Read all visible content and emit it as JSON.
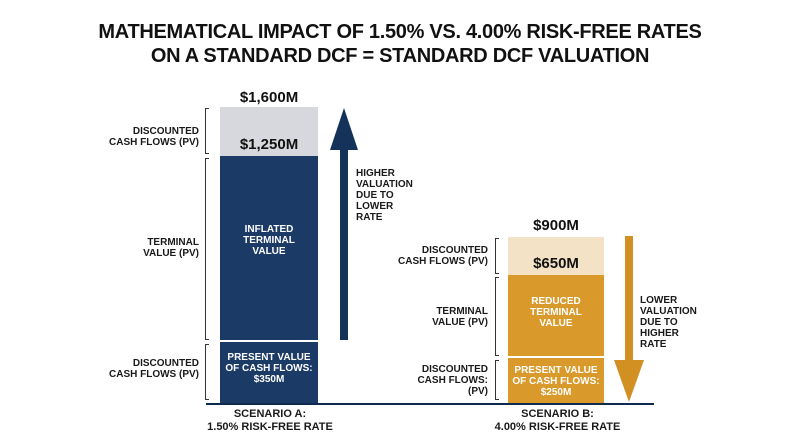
{
  "title_line1": "MATHEMATICAL IMPACT OF 1.50% VS. 4.00% RISK-FREE RATES",
  "title_line2": "ON A STANDARD DCF = STANDARD DCF VALUATION",
  "colors": {
    "navy": "#1b3a66",
    "navy_light": "#d6d8dd",
    "gold": "#d99a2b",
    "gold_light": "#f4e2c7",
    "arrow_navy": "#14325a",
    "arrow_gold": "#d39022"
  },
  "chart_data": {
    "type": "bar",
    "stacked": true,
    "units": "$M",
    "categories": [
      "SCENARIO A: 1.50% RISK-FREE RATE",
      "SCENARIO B: 4.00% RISK-FREE RATE"
    ],
    "scenario_a": {
      "caption_line1": "SCENARIO A:",
      "caption_line2": "1.50% RISK-FREE RATE",
      "total": 1600,
      "total_label": "$1,600M",
      "marker_value": 1250,
      "marker_label": "$1,250M",
      "pv_cash_flows": 350,
      "label_top_line1": "DISCOUNTED",
      "label_top_line2": "CASH FLOWS (PV)",
      "label_mid_line1": "TERMINAL",
      "label_mid_line2": "VALUE (PV)",
      "label_bot_line1": "DISCOUNTED",
      "label_bot_line2": "CASH FLOWS (PV)",
      "seg_mid_line1": "INFLATED",
      "seg_mid_line2": "TERMINAL",
      "seg_mid_line3": "VALUE",
      "seg_bot_line1": "PRESENT VALUE",
      "seg_bot_line2": "OF CASH FLOWS:",
      "seg_bot_line3": "$350M",
      "arrow_note_line1": "HIGHER",
      "arrow_note_line2": "VALUATION",
      "arrow_note_line3": "DUE TO",
      "arrow_note_line4": "LOWER",
      "arrow_note_line5": "RATE"
    },
    "scenario_b": {
      "caption_line1": "SCENARIO B:",
      "caption_line2": "4.00% RISK-FREE RATE",
      "total": 900,
      "total_label": "$900M",
      "marker_value": 650,
      "marker_label": "$650M",
      "pv_cash_flows": 250,
      "label_top_line1": "DISCOUNTED",
      "label_top_line2": "CASH FLOWS (PV)",
      "label_mid_line1": "TERMINAL",
      "label_mid_line2": "VALUE (PV)",
      "label_bot_line1": "DISCOUNTED",
      "label_bot_line2": "CASH FLOWS:",
      "label_bot_line3": "(PV)",
      "seg_mid_line1": "REDUCED",
      "seg_mid_line2": "TERMINAL",
      "seg_mid_line3": "VALUE",
      "seg_bot_line1": "PRESENT VALUE",
      "seg_bot_line2": "OF CASH FLOWS:",
      "seg_bot_line3": "$250M",
      "arrow_note_line1": "LOWER",
      "arrow_note_line2": "VALUATION",
      "arrow_note_line3": "DUE TO",
      "arrow_note_line4": "HIGHER",
      "arrow_note_line5": "RATE"
    }
  }
}
